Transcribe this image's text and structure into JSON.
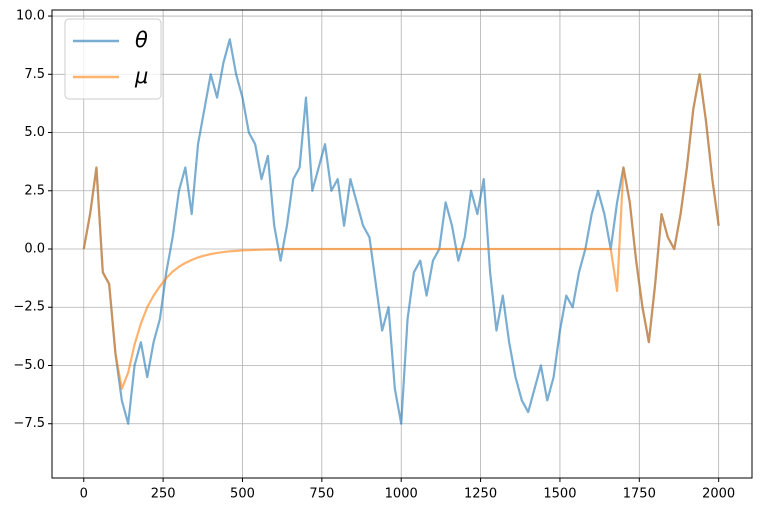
{
  "chart_data": {
    "type": "line",
    "x": [
      0,
      20,
      40,
      60,
      80,
      100,
      120,
      140,
      160,
      180,
      200,
      220,
      240,
      260,
      280,
      300,
      320,
      340,
      360,
      380,
      400,
      420,
      440,
      460,
      480,
      500,
      520,
      540,
      560,
      580,
      600,
      620,
      640,
      660,
      680,
      700,
      720,
      740,
      760,
      780,
      800,
      820,
      840,
      860,
      880,
      900,
      920,
      940,
      960,
      980,
      1000,
      1020,
      1040,
      1060,
      1080,
      1100,
      1120,
      1140,
      1160,
      1180,
      1200,
      1220,
      1240,
      1260,
      1280,
      1300,
      1320,
      1340,
      1360,
      1380,
      1400,
      1420,
      1440,
      1460,
      1480,
      1500,
      1520,
      1540,
      1560,
      1580,
      1600,
      1620,
      1640,
      1660,
      1680,
      1700,
      1720,
      1740,
      1760,
      1780,
      1800,
      1820,
      1840,
      1860,
      1880,
      1900,
      1920,
      1940,
      1960,
      1980,
      2000
    ],
    "series": [
      {
        "name": "θ",
        "color": "#1f77b4",
        "values": [
          0,
          1.5,
          3.5,
          -1,
          -1.5,
          -4.5,
          -6.5,
          -7.5,
          -5,
          -4,
          -5.5,
          -4,
          -3,
          -1,
          0.5,
          2.5,
          3.5,
          1.5,
          4.5,
          6,
          7.5,
          6.5,
          8,
          9,
          7.5,
          6.5,
          5,
          4.5,
          3,
          4,
          1,
          -0.5,
          1,
          3,
          3.5,
          6.5,
          2.5,
          3.5,
          4.5,
          2.5,
          3,
          1,
          3,
          2,
          1,
          0.5,
          -1.5,
          -3.5,
          -2.5,
          -6,
          -7.5,
          -3,
          -1,
          -0.5,
          -2,
          -0.5,
          0,
          2,
          1,
          -0.5,
          0.5,
          2.5,
          1.5,
          3,
          -1,
          -3.5,
          -2,
          -4,
          -5.5,
          -6.5,
          -7,
          -6,
          -5,
          -6.5,
          -5.5,
          -3.5,
          -2,
          -2.5,
          -1,
          0,
          1.5,
          2.5,
          1.5,
          0,
          2,
          3.5,
          2,
          -0.5,
          -2.5,
          -4,
          -1.5,
          1.5,
          0.5,
          0,
          1.5,
          3.5,
          6,
          7.5,
          5.5,
          3,
          1
        ]
      },
      {
        "name": "μ",
        "color": "#ff7f0e",
        "values": [
          0,
          1.5,
          3.5,
          -1,
          -1.5,
          -4.5,
          -6,
          -5.3,
          -4.1,
          -3.2,
          -2.5,
          -2,
          -1.6,
          -1.25,
          -0.97,
          -0.76,
          -0.6,
          -0.47,
          -0.36,
          -0.28,
          -0.22,
          -0.17,
          -0.13,
          -0.1,
          -0.08,
          -0.06,
          -0.05,
          -0.04,
          -0.03,
          -0.02,
          -0.02,
          0,
          0,
          0,
          0,
          0,
          0,
          0,
          0,
          0,
          0,
          0,
          0,
          0,
          0,
          0,
          0,
          0,
          0,
          0,
          0,
          0,
          0,
          0,
          0,
          0,
          0,
          0,
          0,
          0,
          0,
          0,
          0,
          0,
          0,
          0,
          0,
          0,
          0,
          0,
          0,
          0,
          0,
          0,
          0,
          0,
          0,
          0,
          0,
          0,
          0,
          0,
          0,
          0,
          -1.8,
          3.5,
          2,
          -0.5,
          -2.5,
          -4,
          -1.5,
          1.5,
          0.5,
          0,
          1.5,
          3.5,
          6,
          7.5,
          5.5,
          3,
          1
        ]
      }
    ],
    "xlim": [
      -100,
      2105
    ],
    "ylim": [
      -9.83,
      10.26
    ],
    "xticks": [
      0,
      250,
      500,
      750,
      1000,
      1250,
      1500,
      1750,
      2000
    ],
    "yticks": [
      {
        "value": -7.5,
        "label": "−7.5"
      },
      {
        "value": -5,
        "label": "−5.0"
      },
      {
        "value": -2.5,
        "label": "−2.5"
      },
      {
        "value": 0,
        "label": "0.0"
      },
      2.5,
      {
        "value": 5,
        "label": "5.0"
      },
      7.5,
      {
        "value": 10,
        "label": "10.0"
      }
    ],
    "grid": true,
    "legend": "upper left"
  }
}
